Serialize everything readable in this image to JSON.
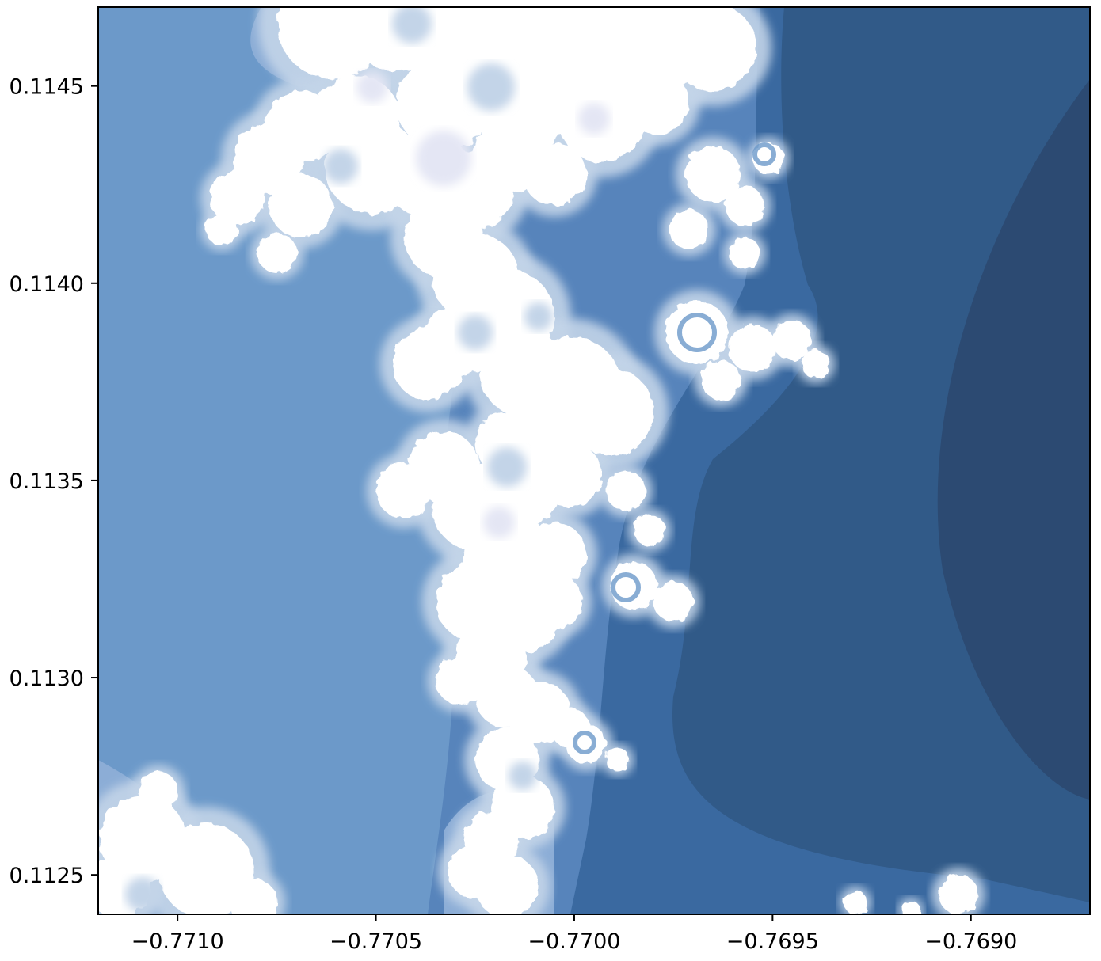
{
  "chart_data": {
    "type": "heatmap",
    "title": "",
    "xlabel": "",
    "ylabel": "",
    "xlim": [
      -0.7712,
      -0.7687
    ],
    "ylim": [
      0.1124,
      0.1147
    ],
    "x_ticks": [
      -0.771,
      -0.7705,
      -0.77,
      -0.7695,
      -0.769
    ],
    "y_ticks": [
      0.1125,
      0.113,
      0.1135,
      0.114,
      0.1145
    ],
    "x_tick_labels": [
      "−0.7710",
      "−0.7705",
      "−0.7700",
      "−0.7695",
      "−0.7690"
    ],
    "y_tick_labels": [
      "0.1125",
      "0.1130",
      "0.1135",
      "0.1140",
      "0.1145"
    ],
    "colormap": [
      "#2c4a72",
      "#315a88",
      "#3a69a0",
      "#5784bb",
      "#6c99c9",
      "#8cadd6",
      "#c3d4e8",
      "#e4e6f4",
      "#ffffff"
    ]
  }
}
